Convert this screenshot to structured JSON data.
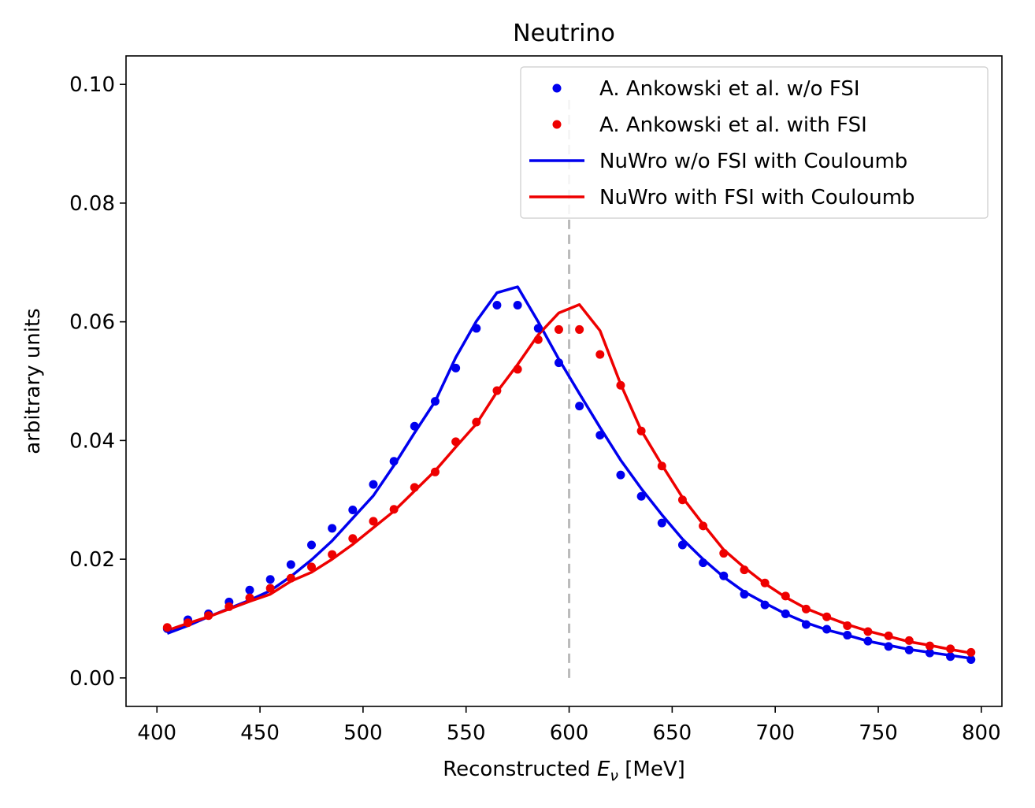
{
  "chart_data": {
    "type": "scatter",
    "title": "Neutrino",
    "xlabel": {
      "prefix": "Reconstructed ",
      "symbol": "E",
      "subscript": "ν",
      "suffix": " [MeV]"
    },
    "ylabel": "arbitrary units",
    "xlim": [
      385,
      810
    ],
    "ylim": [
      -0.0048,
      0.1048
    ],
    "xticks": [
      400,
      450,
      500,
      550,
      600,
      650,
      700,
      750,
      800
    ],
    "yticks": [
      0.0,
      0.02,
      0.04,
      0.06,
      0.08,
      0.1
    ],
    "xtick_labels": [
      "400",
      "450",
      "500",
      "550",
      "600",
      "650",
      "700",
      "750",
      "800"
    ],
    "ytick_labels": [
      "0.00",
      "0.02",
      "0.04",
      "0.06",
      "0.08",
      "0.10"
    ],
    "grid": false,
    "legend_position": "top-right",
    "vline": {
      "x": 600,
      "style": "dashed",
      "color": "#bbbbbb"
    },
    "series": [
      {
        "name": "A. Ankowski et al. w/o FSI",
        "kind": "scatter",
        "color": "#0000ee",
        "x": [
          405,
          415,
          425,
          435,
          445,
          455,
          465,
          475,
          485,
          495,
          505,
          515,
          525,
          535,
          545,
          555,
          565,
          575,
          585,
          595,
          605,
          615,
          625,
          635,
          645,
          655,
          665,
          675,
          685,
          695,
          705,
          715,
          725,
          735,
          745,
          755,
          765,
          775,
          785,
          795
        ],
        "y": [
          0.0083,
          0.0098,
          0.0108,
          0.0128,
          0.0148,
          0.0166,
          0.0191,
          0.0224,
          0.0252,
          0.0283,
          0.0326,
          0.0365,
          0.0424,
          0.0466,
          0.0522,
          0.0589,
          0.0628,
          0.0628,
          0.0589,
          0.0531,
          0.0458,
          0.0409,
          0.0342,
          0.0306,
          0.0261,
          0.0224,
          0.0194,
          0.0172,
          0.0141,
          0.0123,
          0.0108,
          0.009,
          0.0082,
          0.0072,
          0.0062,
          0.0053,
          0.0047,
          0.0042,
          0.0036,
          0.0031
        ]
      },
      {
        "name": "A. Ankowski et al. with FSI",
        "kind": "scatter",
        "color": "#ee0000",
        "x": [
          405,
          415,
          425,
          435,
          445,
          455,
          465,
          475,
          485,
          495,
          505,
          515,
          525,
          535,
          545,
          555,
          565,
          575,
          585,
          595,
          605,
          615,
          625,
          635,
          645,
          655,
          665,
          675,
          685,
          695,
          705,
          715,
          725,
          735,
          745,
          755,
          765,
          775,
          785,
          795
        ],
        "y": [
          0.0085,
          0.0093,
          0.0105,
          0.012,
          0.0135,
          0.0151,
          0.0168,
          0.0187,
          0.0208,
          0.0235,
          0.0264,
          0.0284,
          0.0321,
          0.0347,
          0.0398,
          0.0431,
          0.0484,
          0.052,
          0.057,
          0.0587,
          0.0587,
          0.0545,
          0.0493,
          0.0416,
          0.0357,
          0.03,
          0.0256,
          0.021,
          0.0182,
          0.016,
          0.0138,
          0.0116,
          0.0103,
          0.0088,
          0.0078,
          0.0071,
          0.0063,
          0.0054,
          0.0049,
          0.0043
        ]
      },
      {
        "name": "NuWro w/o FSI with Couloumb",
        "kind": "line",
        "color": "#0000ee",
        "x": [
          405,
          415,
          425,
          435,
          445,
          455,
          465,
          475,
          485,
          495,
          505,
          515,
          525,
          535,
          545,
          555,
          565,
          575,
          585,
          595,
          605,
          615,
          625,
          635,
          645,
          655,
          665,
          675,
          685,
          695,
          705,
          715,
          725,
          735,
          745,
          755,
          765,
          775,
          785,
          795
        ],
        "y": [
          0.0075,
          0.0088,
          0.0103,
          0.0117,
          0.0131,
          0.0147,
          0.0171,
          0.0199,
          0.0231,
          0.0269,
          0.0307,
          0.0358,
          0.0413,
          0.0466,
          0.054,
          0.0601,
          0.0649,
          0.0659,
          0.06,
          0.0537,
          0.0479,
          0.0422,
          0.0367,
          0.0319,
          0.0275,
          0.0234,
          0.02,
          0.017,
          0.0145,
          0.0126,
          0.0108,
          0.0093,
          0.0081,
          0.0072,
          0.0062,
          0.0055,
          0.0048,
          0.0043,
          0.0038,
          0.0033
        ]
      },
      {
        "name": "NuWro with FSI with Couloumb",
        "kind": "line",
        "color": "#ee0000",
        "x": [
          405,
          415,
          425,
          435,
          445,
          455,
          465,
          475,
          485,
          495,
          505,
          515,
          525,
          535,
          545,
          555,
          565,
          575,
          585,
          595,
          605,
          615,
          625,
          635,
          645,
          655,
          665,
          675,
          685,
          695,
          705,
          715,
          725,
          735,
          745,
          755,
          765,
          775,
          785,
          795
        ],
        "y": [
          0.008,
          0.0092,
          0.0103,
          0.0116,
          0.0129,
          0.0141,
          0.0163,
          0.0178,
          0.02,
          0.0225,
          0.0253,
          0.0281,
          0.0315,
          0.0349,
          0.0389,
          0.0428,
          0.0482,
          0.0528,
          0.0578,
          0.0615,
          0.0629,
          0.0585,
          0.0495,
          0.0417,
          0.0359,
          0.0304,
          0.0259,
          0.0216,
          0.0186,
          0.0159,
          0.0136,
          0.0117,
          0.0103,
          0.009,
          0.0079,
          0.007,
          0.0061,
          0.0055,
          0.0048,
          0.0042
        ]
      }
    ]
  }
}
